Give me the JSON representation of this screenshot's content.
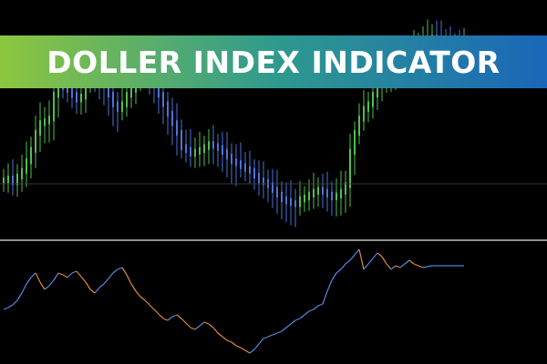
{
  "banner": {
    "title": "DOLLER INDEX INDICATOR",
    "gradient": [
      "#8dc63f",
      "#2f9a8e",
      "#1a66b8"
    ]
  },
  "colors": {
    "background": "#000000",
    "bull_candle": "#4fbf4f",
    "bear_candle": "#4a74d8",
    "indicator_up": "#5a86e0",
    "indicator_down": "#e08a3c",
    "separator": "#bfbfbf",
    "level_line": "#3a3a3a"
  },
  "chart_data": [
    {
      "type": "line",
      "name": "price-panel",
      "x": [
        0,
        1,
        2,
        3,
        4,
        5,
        6,
        7,
        8,
        9,
        10,
        11,
        12,
        13,
        14,
        15,
        16,
        17,
        18,
        19,
        20,
        21,
        22,
        23,
        24,
        25,
        26,
        27,
        28,
        29,
        30,
        31,
        32,
        33,
        34,
        35,
        36,
        37,
        38,
        39,
        40,
        41,
        42,
        43,
        44,
        45,
        46,
        47,
        48,
        49,
        50,
        51,
        52,
        53,
        54,
        55,
        56,
        57,
        58,
        59,
        60,
        61,
        62,
        63,
        64,
        65,
        66,
        67,
        68,
        69,
        70,
        71,
        72,
        73,
        74,
        75,
        76,
        77,
        78,
        79,
        80,
        81,
        82,
        83,
        84,
        85,
        86,
        87,
        88,
        89,
        90,
        91,
        92,
        93,
        94,
        95,
        96,
        97,
        98,
        99,
        100,
        101
      ],
      "values": [
        60,
        62,
        58,
        64,
        70,
        80,
        92,
        110,
        120,
        122,
        125,
        150,
        160,
        158,
        155,
        150,
        145,
        148,
        170,
        180,
        172,
        165,
        160,
        150,
        140,
        135,
        140,
        150,
        155,
        170,
        180,
        178,
        168,
        160,
        150,
        140,
        130,
        120,
        110,
        95,
        92,
        88,
        90,
        92,
        95,
        98,
        96,
        94,
        90,
        85,
        80,
        78,
        75,
        72,
        70,
        65,
        60,
        58,
        55,
        50,
        45,
        40,
        38,
        36,
        35,
        40,
        42,
        45,
        48,
        50,
        48,
        45,
        42,
        44,
        48,
        55,
        90,
        110,
        125,
        135,
        140,
        150,
        160,
        170,
        172,
        175,
        180,
        185,
        190,
        195,
        198,
        202,
        205,
        208,
        210,
        206,
        204,
        203,
        202,
        202,
        200,
        200
      ]
    },
    {
      "type": "line",
      "name": "indicator-panel",
      "x": [
        0,
        1,
        2,
        3,
        4,
        5,
        6,
        7,
        8,
        9,
        10,
        11,
        12,
        13,
        14,
        15,
        16,
        17,
        18,
        19,
        20,
        21,
        22,
        23,
        24,
        25,
        26,
        27,
        28,
        29,
        30,
        31,
        32,
        33,
        34,
        35,
        36,
        37,
        38,
        39,
        40,
        41,
        42,
        43,
        44,
        45,
        46,
        47,
        48,
        49,
        50,
        51,
        52,
        53,
        54,
        55,
        56,
        57,
        58,
        59,
        60,
        61,
        62,
        63,
        64,
        65,
        66,
        67,
        68,
        69,
        70,
        71,
        72,
        73,
        74,
        75,
        76,
        77,
        78,
        79,
        80,
        81,
        82,
        83,
        84,
        85,
        86,
        87,
        88,
        89,
        90,
        91,
        92,
        93,
        94,
        95,
        96,
        97,
        98,
        99,
        100,
        101
      ],
      "values": [
        340,
        338,
        335,
        330,
        322,
        312,
        305,
        300,
        310,
        318,
        314,
        308,
        300,
        302,
        305,
        300,
        298,
        304,
        310,
        318,
        322,
        316,
        312,
        306,
        300,
        296,
        294,
        302,
        312,
        320,
        326,
        330,
        335,
        340,
        345,
        350,
        352,
        348,
        346,
        350,
        355,
        360,
        362,
        358,
        354,
        356,
        360,
        366,
        370,
        374,
        376,
        380,
        382,
        385,
        388,
        384,
        378,
        372,
        370,
        368,
        366,
        364,
        360,
        356,
        352,
        350,
        346,
        342,
        340,
        336,
        334,
        320,
        308,
        300,
        296,
        290,
        286,
        280,
        274,
        296,
        290,
        284,
        278,
        282,
        290,
        296,
        292,
        294,
        290,
        286,
        290,
        292,
        294,
        293,
        292,
        292,
        292,
        292,
        292,
        292,
        292,
        292
      ]
    }
  ]
}
